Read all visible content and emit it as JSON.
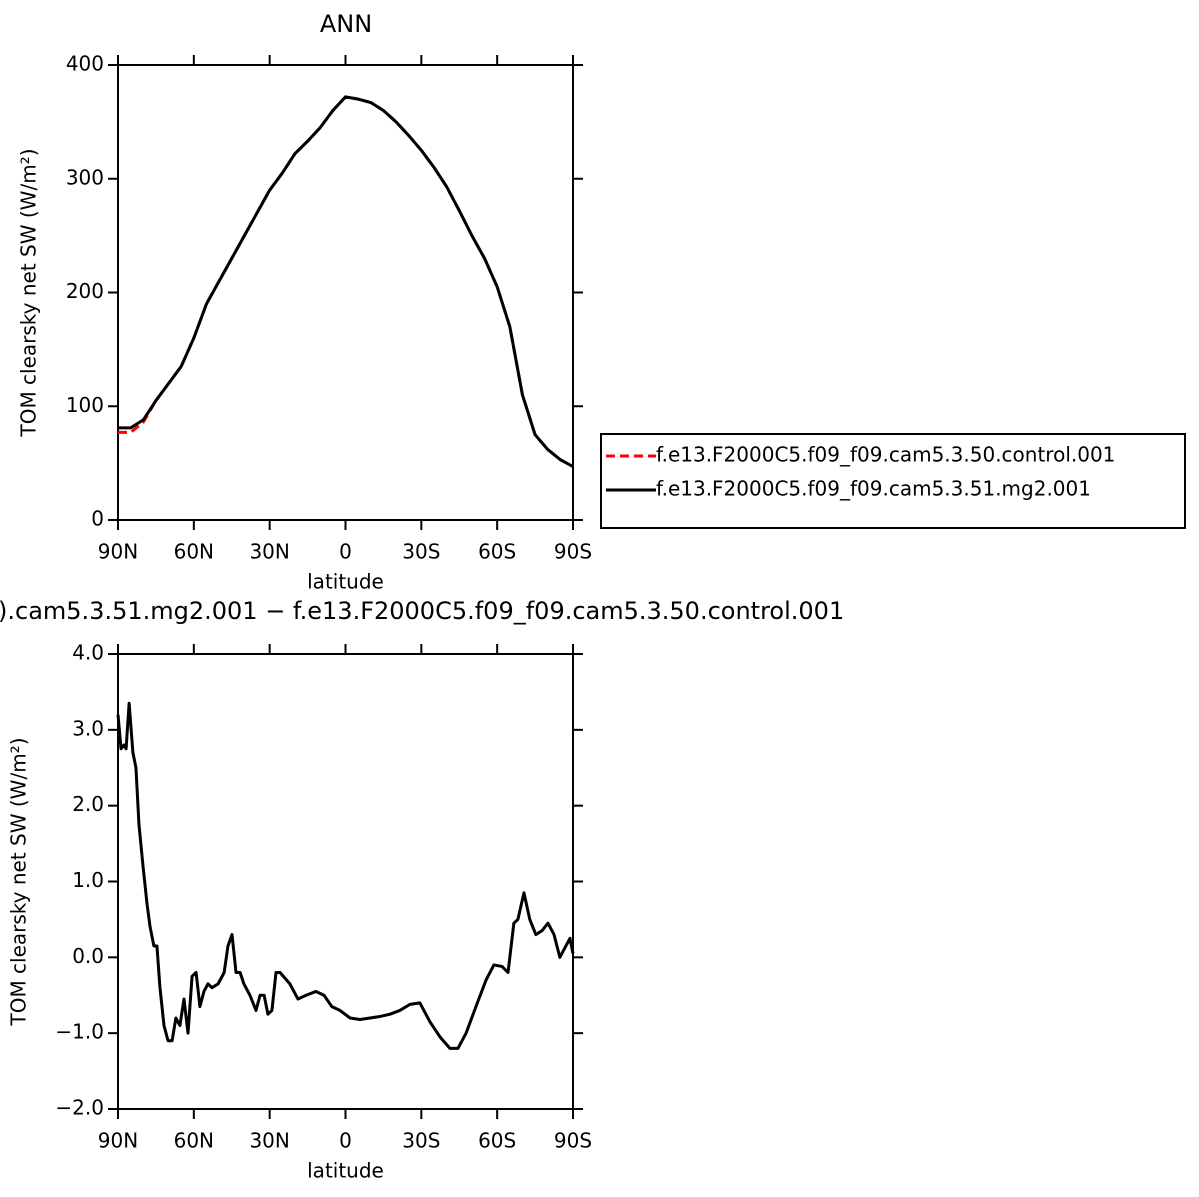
{
  "chart_data": [
    {
      "type": "line",
      "title": "ANN",
      "xlabel": "latitude",
      "ylabel": "TOM clearsky net SW (W/m²)",
      "x": [
        90,
        85,
        80,
        75,
        70,
        65,
        60,
        55,
        50,
        45,
        40,
        35,
        30,
        25,
        20,
        15,
        10,
        5,
        0,
        -5,
        -10,
        -15,
        -20,
        -25,
        -30,
        -35,
        -40,
        -45,
        -50,
        -55,
        -60,
        -65,
        -70,
        -75,
        -80,
        -85,
        -90
      ],
      "series": [
        {
          "name": "f.e13.F2000C5.f09_f09.cam5.3.50.control.001",
          "color": "#ff0000",
          "linestyle": "dashed",
          "values": [
            77,
            77,
            86,
            105,
            120,
            135,
            160,
            190,
            210,
            230,
            250,
            270,
            290,
            305,
            322,
            333,
            345,
            360,
            372,
            370,
            367,
            360,
            350,
            338,
            325,
            310,
            293,
            272,
            250,
            230,
            205,
            170,
            110,
            75,
            62,
            53,
            47
          ]
        },
        {
          "name": "f.e13.F2000C5.f09_f09.cam5.3.51.mg2.001",
          "color": "#000000",
          "linestyle": "solid",
          "values": [
            81,
            81,
            88,
            105,
            120,
            135,
            160,
            190,
            210,
            230,
            250,
            270,
            290,
            305,
            322,
            333,
            345,
            360,
            372,
            370,
            367,
            360,
            350,
            338,
            325,
            310,
            293,
            272,
            250,
            230,
            205,
            170,
            110,
            75,
            62,
            53,
            47
          ]
        }
      ],
      "xlim": [
        90,
        -90
      ],
      "xticks": [
        {
          "value": 90,
          "label": "90N"
        },
        {
          "value": 60,
          "label": "60N"
        },
        {
          "value": 30,
          "label": "30N"
        },
        0,
        {
          "value": -30,
          "label": "30S"
        },
        {
          "value": -60,
          "label": "60S"
        },
        {
          "value": -90,
          "label": "90S"
        }
      ],
      "ylim": [
        0,
        400
      ],
      "yticks": [
        0,
        100,
        200,
        300,
        400
      ],
      "legend": "right"
    },
    {
      "type": "line",
      "title": ").cam5.3.51.mg2.001 − f.e13.F2000C5.f09_f09.cam5.3.50.control.001",
      "xlabel": "latitude",
      "ylabel": "TOM clearsky net SW (W/m²)",
      "x": [
        90,
        88.8,
        87.6,
        86.8,
        85.6,
        84.1,
        82.9,
        81.7,
        80.1,
        78.5,
        77.3,
        75.8,
        74.6,
        73.4,
        71.8,
        70.2,
        68.6,
        67.1,
        65.5,
        63.9,
        62.3,
        60.7,
        59.1,
        57.6,
        56,
        54.4,
        52.8,
        50.4,
        48,
        46.5,
        44.9,
        43.3,
        41.7,
        40.2,
        37.8,
        35.4,
        33.8,
        32.2,
        30.7,
        29.1,
        27.5,
        25.9,
        22,
        18.8,
        15.6,
        11.7,
        8.5,
        5.4,
        2.2,
        -1.8,
        -5.7,
        -9.7,
        -13.6,
        -17.6,
        -21.5,
        -25.5,
        -29.4,
        -33.4,
        -37.4,
        -41.3,
        -44.5,
        -47.7,
        -51.6,
        -55.6,
        -58.7,
        -61.9,
        -64.3,
        -66.6,
        -68.2,
        -70.6,
        -72.9,
        -75.3,
        -77.7,
        -80.1,
        -82.5,
        -84.8,
        -87.2,
        -88.8,
        -90
      ],
      "series": [
        {
          "color": "#000000",
          "linestyle": "solid",
          "values": [
            3.2,
            2.75,
            2.8,
            2.75,
            3.35,
            2.7,
            2.5,
            1.75,
            1.2,
            0.7,
            0.4,
            0.15,
            0.15,
            -0.4,
            -0.9,
            -1.1,
            -1.1,
            -0.8,
            -0.9,
            -0.55,
            -1.0,
            -0.25,
            -0.2,
            -0.65,
            -0.45,
            -0.35,
            -0.4,
            -0.35,
            -0.2,
            0.15,
            0.3,
            -0.2,
            -0.2,
            -0.35,
            -0.5,
            -0.7,
            -0.5,
            -0.5,
            -0.75,
            -0.7,
            -0.2,
            -0.2,
            -0.35,
            -0.55,
            -0.5,
            -0.45,
            -0.5,
            -0.65,
            -0.7,
            -0.8,
            -0.82,
            -0.8,
            -0.78,
            -0.75,
            -0.7,
            -0.62,
            -0.6,
            -0.85,
            -1.05,
            -1.2,
            -1.2,
            -1.0,
            -0.65,
            -0.3,
            -0.1,
            -0.12,
            -0.2,
            0.45,
            0.5,
            0.85,
            0.5,
            0.3,
            0.35,
            0.45,
            0.3,
            0.0,
            0.15,
            0.25,
            0.05
          ]
        }
      ],
      "xlim": [
        90,
        -90
      ],
      "xticks": [
        {
          "value": 90,
          "label": "90N"
        },
        {
          "value": 60,
          "label": "60N"
        },
        {
          "value": 30,
          "label": "30N"
        },
        0,
        {
          "value": -30,
          "label": "30S"
        },
        {
          "value": -60,
          "label": "60S"
        },
        {
          "value": -90,
          "label": "90S"
        }
      ],
      "ylim": [
        -2,
        4
      ],
      "yticks": [
        {
          "value": -2,
          "label": "−2.0"
        },
        {
          "value": -1,
          "label": "−1.0"
        },
        {
          "value": 0,
          "label": "0.0"
        },
        {
          "value": 1,
          "label": "1.0"
        },
        {
          "value": 2,
          "label": "2.0"
        },
        {
          "value": 3,
          "label": "3.0"
        },
        {
          "value": 4,
          "label": "4.0"
        }
      ]
    }
  ]
}
